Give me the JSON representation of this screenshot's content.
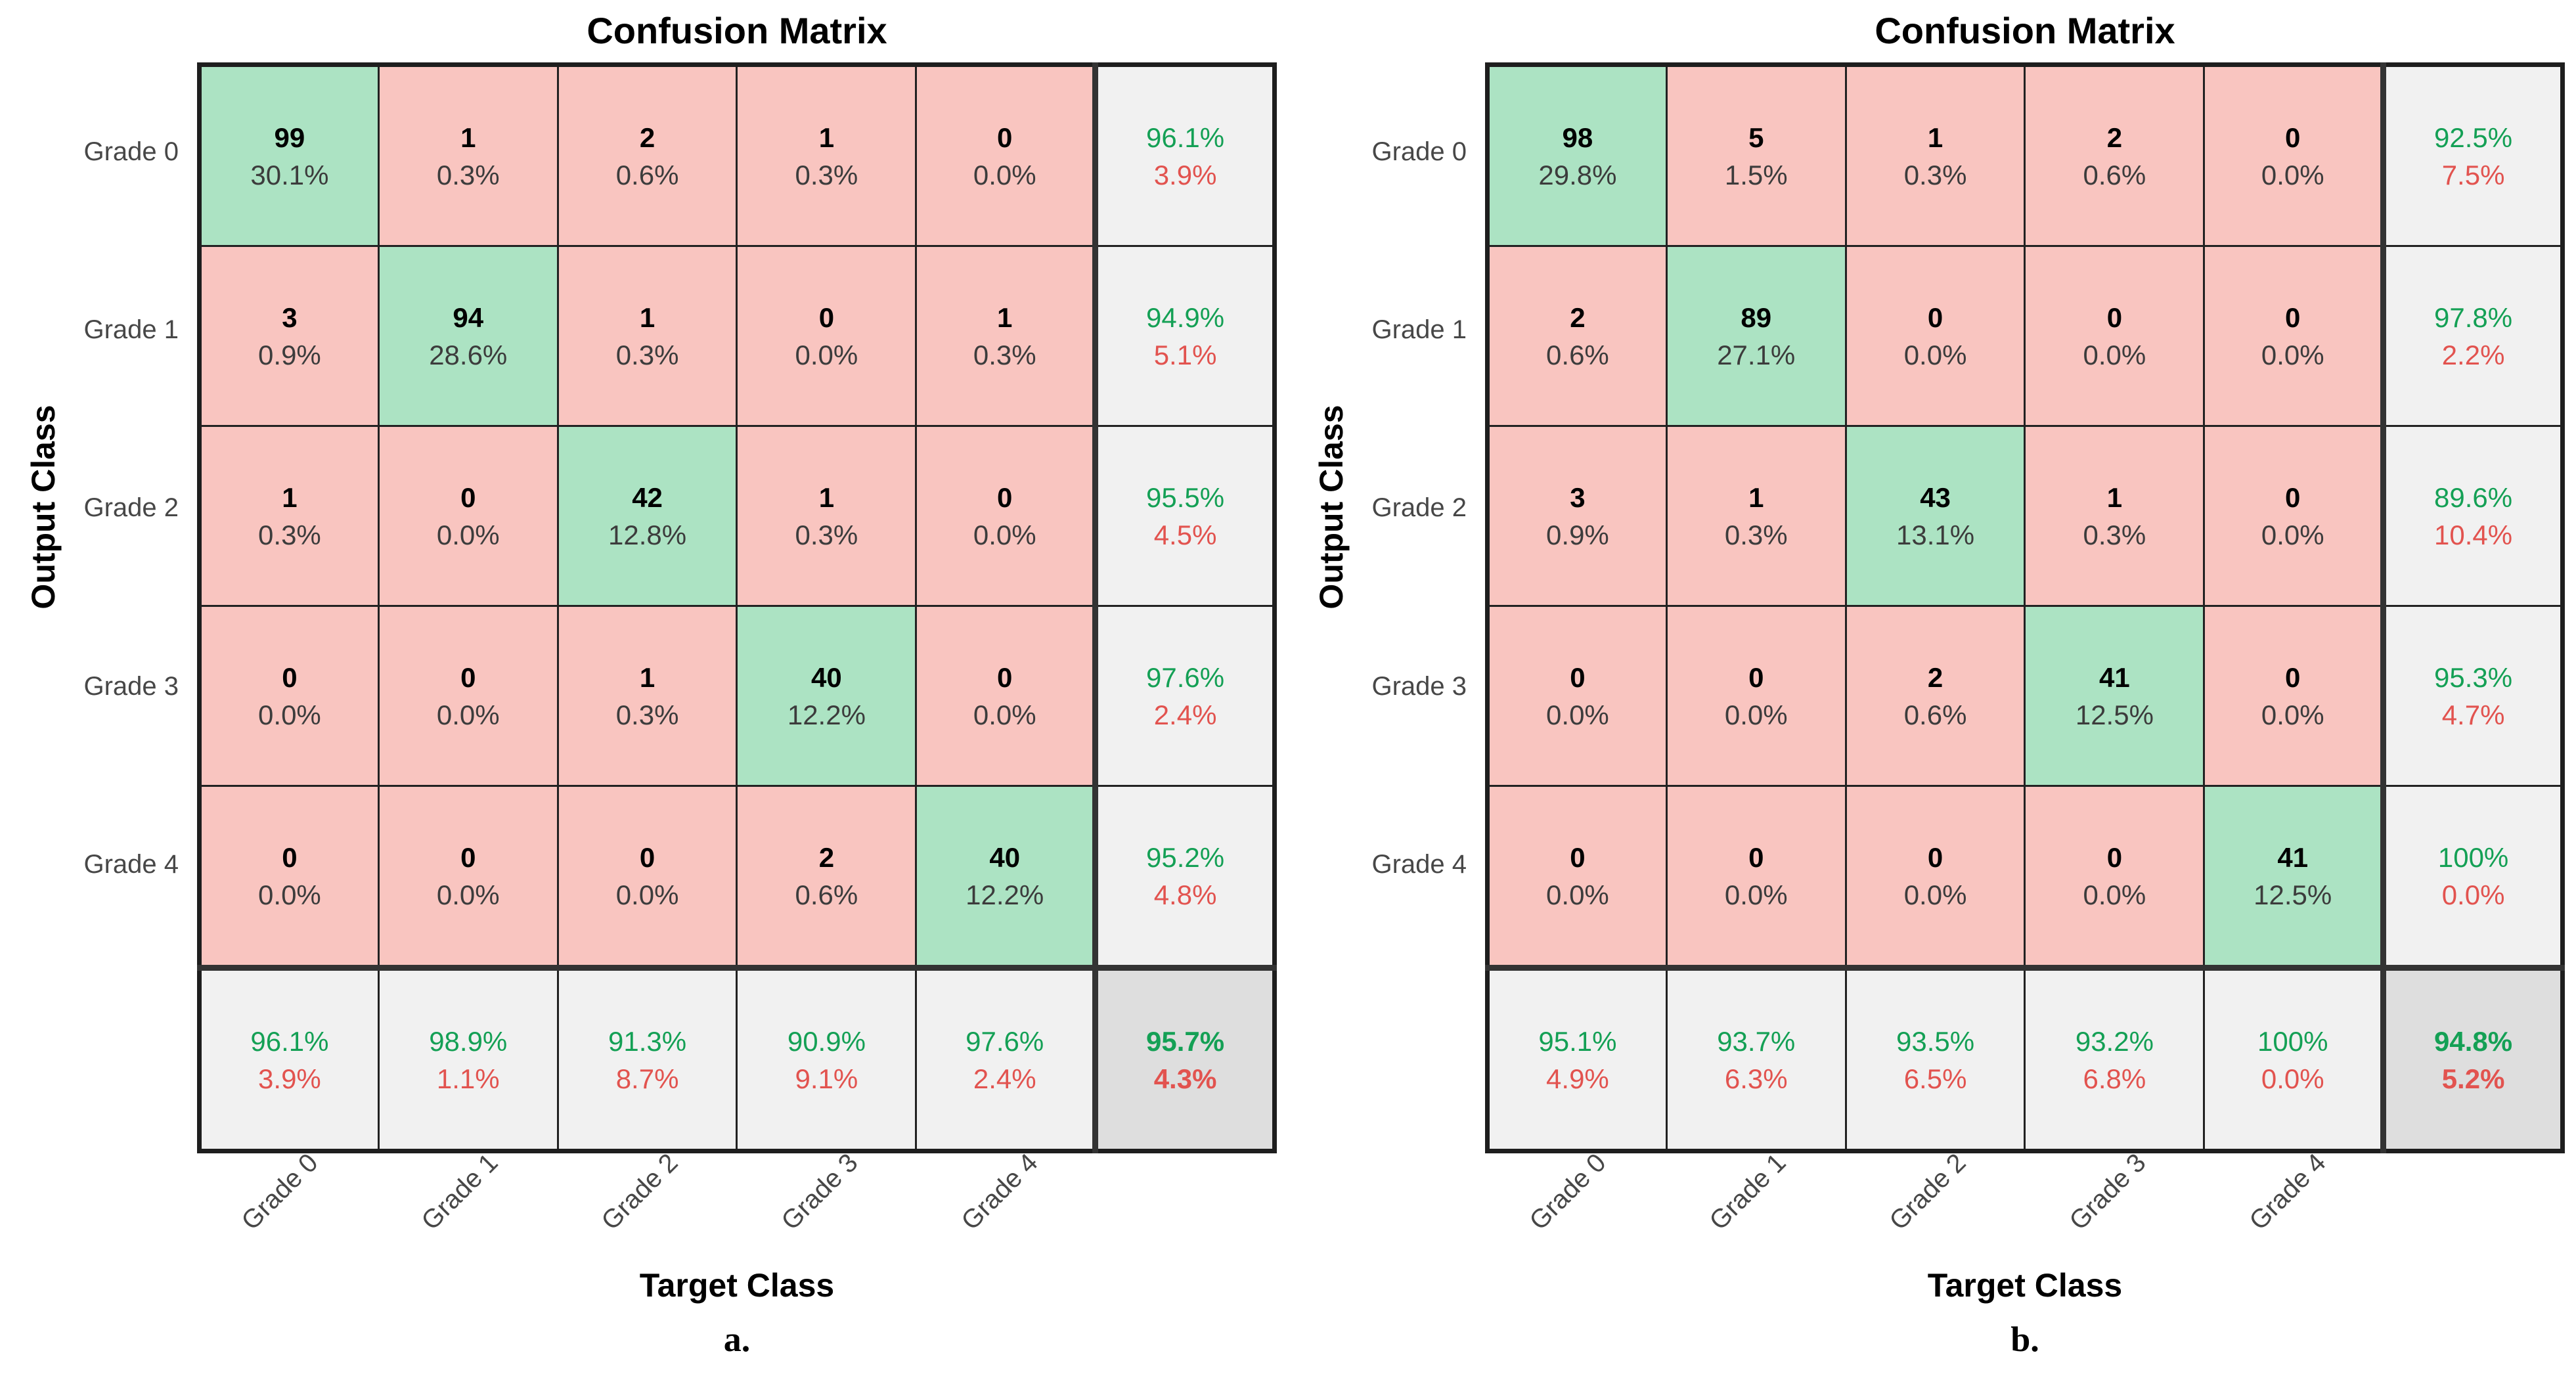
{
  "page": {
    "background": "#ffffff"
  },
  "colors": {
    "diagonal_fill": "#ace3c3",
    "off_diagonal_fill": "#f9c5c0",
    "summary_fill": "#f1f1f1",
    "total_fill": "#dedede",
    "green_text": "#14a055",
    "red_text": "#e2534f",
    "count_text": "#000000",
    "percent_text": "#3c3c3c",
    "label_text": "#474747",
    "grid_line": "#222222",
    "separator_line": "#333333"
  },
  "chart_data": [
    {
      "type": "heatmap",
      "subtype": "confusion-matrix",
      "title": "Confusion Matrix",
      "xlabel": "Target Class",
      "ylabel": "Output Class",
      "caption": "a.",
      "classes": [
        "Grade 0",
        "Grade 1",
        "Grade 2",
        "Grade 3",
        "Grade 4"
      ],
      "counts": [
        [
          99,
          1,
          2,
          1,
          0
        ],
        [
          3,
          94,
          1,
          0,
          1
        ],
        [
          1,
          0,
          42,
          1,
          0
        ],
        [
          0,
          0,
          1,
          40,
          0
        ],
        [
          0,
          0,
          0,
          2,
          40
        ]
      ],
      "percents": [
        [
          "30.1%",
          "0.3%",
          "0.6%",
          "0.3%",
          "0.0%"
        ],
        [
          "0.9%",
          "28.6%",
          "0.3%",
          "0.0%",
          "0.3%"
        ],
        [
          "0.3%",
          "0.0%",
          "12.8%",
          "0.3%",
          "0.0%"
        ],
        [
          "0.0%",
          "0.0%",
          "0.3%",
          "12.2%",
          "0.0%"
        ],
        [
          "0.0%",
          "0.0%",
          "0.0%",
          "0.6%",
          "12.2%"
        ]
      ],
      "row_summary": [
        {
          "top": "96.1%",
          "bottom": "3.9%"
        },
        {
          "top": "94.9%",
          "bottom": "5.1%"
        },
        {
          "top": "95.5%",
          "bottom": "4.5%"
        },
        {
          "top": "97.6%",
          "bottom": "2.4%"
        },
        {
          "top": "95.2%",
          "bottom": "4.8%"
        }
      ],
      "col_summary": [
        {
          "top": "96.1%",
          "bottom": "3.9%"
        },
        {
          "top": "98.9%",
          "bottom": "1.1%"
        },
        {
          "top": "91.3%",
          "bottom": "8.7%"
        },
        {
          "top": "90.9%",
          "bottom": "9.1%"
        },
        {
          "top": "97.6%",
          "bottom": "2.4%"
        }
      ],
      "overall": {
        "top": "95.7%",
        "bottom": "4.3%"
      }
    },
    {
      "type": "heatmap",
      "subtype": "confusion-matrix",
      "title": "Confusion Matrix",
      "xlabel": "Target Class",
      "ylabel": "Output Class",
      "caption": "b.",
      "classes": [
        "Grade 0",
        "Grade 1",
        "Grade 2",
        "Grade 3",
        "Grade 4"
      ],
      "counts": [
        [
          98,
          5,
          1,
          2,
          0
        ],
        [
          2,
          89,
          0,
          0,
          0
        ],
        [
          3,
          1,
          43,
          1,
          0
        ],
        [
          0,
          0,
          2,
          41,
          0
        ],
        [
          0,
          0,
          0,
          0,
          41
        ]
      ],
      "percents": [
        [
          "29.8%",
          "1.5%",
          "0.3%",
          "0.6%",
          "0.0%"
        ],
        [
          "0.6%",
          "27.1%",
          "0.0%",
          "0.0%",
          "0.0%"
        ],
        [
          "0.9%",
          "0.3%",
          "13.1%",
          "0.3%",
          "0.0%"
        ],
        [
          "0.0%",
          "0.0%",
          "0.6%",
          "12.5%",
          "0.0%"
        ],
        [
          "0.0%",
          "0.0%",
          "0.0%",
          "0.0%",
          "12.5%"
        ]
      ],
      "row_summary": [
        {
          "top": "92.5%",
          "bottom": "7.5%"
        },
        {
          "top": "97.8%",
          "bottom": "2.2%"
        },
        {
          "top": "89.6%",
          "bottom": "10.4%"
        },
        {
          "top": "95.3%",
          "bottom": "4.7%"
        },
        {
          "top": "100%",
          "bottom": "0.0%"
        }
      ],
      "col_summary": [
        {
          "top": "95.1%",
          "bottom": "4.9%"
        },
        {
          "top": "93.7%",
          "bottom": "6.3%"
        },
        {
          "top": "93.5%",
          "bottom": "6.5%"
        },
        {
          "top": "93.2%",
          "bottom": "6.8%"
        },
        {
          "top": "100%",
          "bottom": "0.0%"
        }
      ],
      "overall": {
        "top": "94.8%",
        "bottom": "5.2%"
      }
    }
  ]
}
